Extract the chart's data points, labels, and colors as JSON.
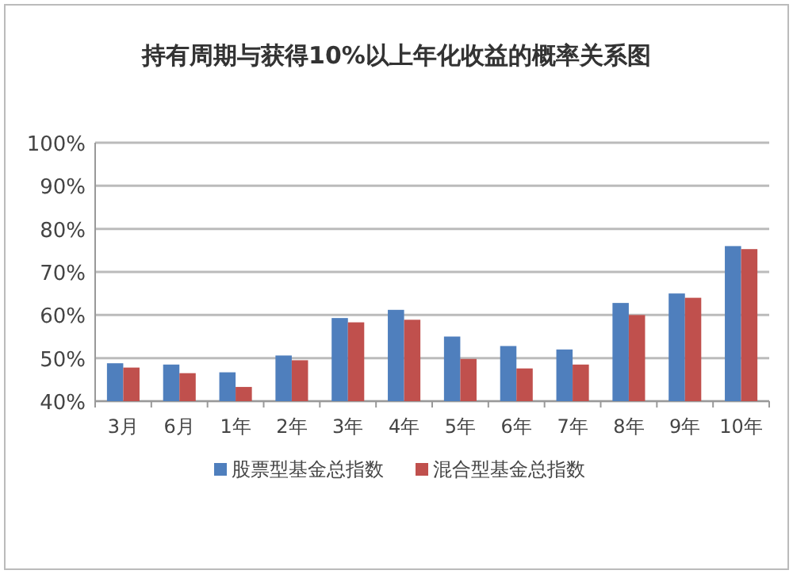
{
  "chart_data": {
    "type": "bar",
    "title": "持有周期与获得10%以上年化收益的概率关系图",
    "categories": [
      "3月",
      "6月",
      "1年",
      "2年",
      "3年",
      "4年",
      "5年",
      "6年",
      "7年",
      "8年",
      "9年",
      "10年"
    ],
    "series": [
      {
        "name": "股票型基金总指数",
        "color": "#4f7fbd",
        "values": [
          48.8,
          48.5,
          46.7,
          50.6,
          59.3,
          61.2,
          55.0,
          52.8,
          52.0,
          62.8,
          65,
          76.0
        ]
      },
      {
        "name": "混合型基金总指数",
        "color": "#c0504d",
        "values": [
          47.8,
          46.5,
          43.3,
          49.5,
          58.3,
          58.9,
          49.8,
          47.6,
          48.5,
          60.0,
          64,
          75.3
        ]
      }
    ],
    "ylim": [
      40,
      100
    ],
    "yticks": [
      {
        "value": 40,
        "label": "40%"
      },
      {
        "value": 50,
        "label": "50%"
      },
      {
        "value": 60,
        "label": "60%"
      },
      {
        "value": 70,
        "label": "70%"
      },
      {
        "value": 80,
        "label": "80%"
      },
      {
        "value": 90,
        "label": "90%"
      },
      {
        "value": 100,
        "label": "100%"
      }
    ],
    "grid": "y",
    "legend": "bottom"
  }
}
